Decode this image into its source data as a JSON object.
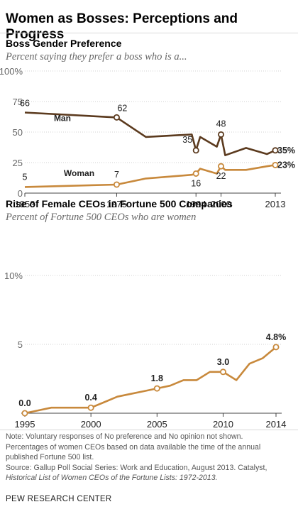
{
  "title": "Women as Bosses: Perceptions and Progress",
  "charts": {
    "boss": {
      "subtitle": "Boss Gender Preference",
      "caption": "Percent saying they prefer a boss who is a..."
    },
    "ceo": {
      "subtitle": "Rise of Female CEOs in Fortune 500 Companies",
      "caption": "Percent of Fortune 500 CEOs who are women"
    }
  },
  "footer": {
    "note_lines": [
      "Note: Voluntary responses of No preference and No opinion not shown.",
      "Percentages of women CEOs based on data available the time of the annual",
      "published Fortune 500 list."
    ],
    "source_line": "Source: Gallup Poll Social Series: Work and Education, August 2013. Catalyst,",
    "source_title": "Historical List of Women CEOs of the Fortune Lists: 1972-2013.",
    "brand": "PEW RESEARCH CENTER"
  },
  "colors": {
    "man": "#5b3a1e",
    "woman": "#c8893c",
    "grid": "#d0d0d0",
    "axis": "#444444",
    "text": "#222222"
  },
  "chart_data": [
    {
      "type": "line",
      "title": "Boss Gender Preference",
      "subtitle": "Percent saying they prefer a boss who is a...",
      "xlabel": "",
      "ylabel": "",
      "xlim": [
        1953,
        2013
      ],
      "ylim": [
        0,
        100
      ],
      "x_ticks": [
        1953,
        1975,
        1994,
        2000,
        2013
      ],
      "y_ticks": [
        {
          "value": 0,
          "label": "0"
        },
        {
          "value": 25,
          "label": "25"
        },
        {
          "value": 50,
          "label": "50"
        },
        {
          "value": 75,
          "label": "75"
        },
        {
          "value": 100,
          "label": "100%"
        }
      ],
      "grid": true,
      "series": [
        {
          "name": "Man",
          "color": "#5b3a1e",
          "x": [
            1953,
            1975,
            1982,
            1993,
            1994,
            1995,
            1999,
            2000,
            2001,
            2006,
            2011,
            2013
          ],
          "y": [
            66,
            62,
            46,
            48,
            35,
            46,
            38,
            48,
            31,
            37,
            32,
            35
          ],
          "labels": [
            {
              "x": 1953,
              "text": "66"
            },
            {
              "x": 1975,
              "text": "62"
            },
            {
              "x": 1994,
              "text": "35"
            },
            {
              "x": 2000,
              "text": "48"
            },
            {
              "x": 2013,
              "text": "35%"
            }
          ]
        },
        {
          "name": "Woman",
          "color": "#c8893c",
          "x": [
            1953,
            1975,
            1982,
            1993,
            1994,
            1995,
            1999,
            2000,
            2001,
            2006,
            2011,
            2013
          ],
          "y": [
            5,
            7,
            12,
            15,
            16,
            20,
            16,
            22,
            19,
            19,
            22,
            23
          ],
          "labels": [
            {
              "x": 1953,
              "text": "5"
            },
            {
              "x": 1975,
              "text": "7"
            },
            {
              "x": 1994,
              "text": "16"
            },
            {
              "x": 2000,
              "text": "22"
            },
            {
              "x": 2013,
              "text": "23%"
            }
          ]
        }
      ]
    },
    {
      "type": "line",
      "title": "Rise of Female CEOs in Fortune 500 Companies",
      "subtitle": "Percent of Fortune 500 CEOs who are women",
      "xlabel": "",
      "ylabel": "",
      "xlim": [
        1995,
        2014
      ],
      "ylim": [
        0,
        10
      ],
      "x_ticks": [
        1995,
        2000,
        2005,
        2010,
        2014
      ],
      "y_ticks": [
        {
          "value": 5,
          "label": "5"
        },
        {
          "value": 10,
          "label": "10%"
        }
      ],
      "grid": true,
      "series": [
        {
          "name": "",
          "color": "#c8893c",
          "x": [
            1995,
            1996,
            1997,
            1998,
            1999,
            2000,
            2001,
            2002,
            2003,
            2004,
            2005,
            2006,
            2007,
            2008,
            2009,
            2010,
            2011,
            2012,
            2013,
            2014
          ],
          "y": [
            0.0,
            0.2,
            0.4,
            0.4,
            0.4,
            0.4,
            0.8,
            1.2,
            1.4,
            1.6,
            1.8,
            2.0,
            2.4,
            2.4,
            3.0,
            3.0,
            2.4,
            3.6,
            4.0,
            4.8
          ],
          "labels": [
            {
              "x": 1995,
              "text": "0.0"
            },
            {
              "x": 2000,
              "text": "0.4"
            },
            {
              "x": 2005,
              "text": "1.8"
            },
            {
              "x": 2010,
              "text": "3.0"
            },
            {
              "x": 2014,
              "text": "4.8%"
            }
          ]
        }
      ]
    }
  ]
}
